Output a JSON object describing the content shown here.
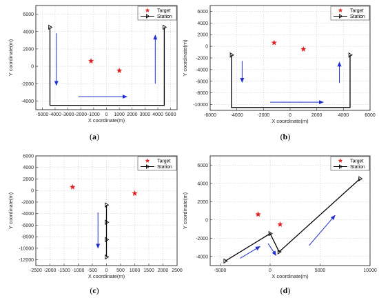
{
  "chart_data": [
    {
      "id": "a",
      "type": "line",
      "panel_label": "a",
      "xlabel": "X coordinate(m)",
      "ylabel": "Y coordinate(m)",
      "xlim": [
        -5500,
        5500
      ],
      "ylim": [
        -5000,
        7000
      ],
      "xticks": [
        -5000,
        -4000,
        -3000,
        -2000,
        -1000,
        0,
        1000,
        2000,
        3000,
        4000,
        5000
      ],
      "yticks": [
        -4000,
        -2000,
        0,
        2000,
        4000,
        6000
      ],
      "grid": true,
      "legend": {
        "position": "top-right",
        "entries": [
          "Target",
          "Station"
        ]
      },
      "targets": [
        [
          -1200,
          600
        ],
        [
          1000,
          -500
        ]
      ],
      "station_path": [
        [
          -4400,
          4500
        ],
        [
          -4400,
          -4500
        ],
        [
          4500,
          -4500
        ],
        [
          4500,
          4500
        ]
      ],
      "station_markers": [
        [
          -4400,
          4500
        ],
        [
          4500,
          4500
        ]
      ],
      "arrows": [
        [
          [
            -3900,
            3800
          ],
          [
            -3900,
            -2200
          ]
        ],
        [
          [
            -2200,
            -3500
          ],
          [
            1600,
            -3500
          ]
        ],
        [
          [
            3800,
            -2000
          ],
          [
            3800,
            3600
          ]
        ]
      ]
    },
    {
      "id": "b",
      "type": "line",
      "panel_label": "b",
      "xlabel": "X coordinate(m)",
      "ylabel": "Y coordinate(m)",
      "xlim": [
        -6000,
        6000
      ],
      "ylim": [
        -11000,
        7000
      ],
      "xticks": [
        -6000,
        -4000,
        -2000,
        0,
        2000,
        4000,
        6000
      ],
      "yticks": [
        -10000,
        -8000,
        -6000,
        -4000,
        -2000,
        0,
        2000,
        4000,
        6000
      ],
      "grid": true,
      "legend": {
        "position": "top-right",
        "entries": [
          "Target",
          "Station"
        ]
      },
      "targets": [
        [
          -1200,
          600
        ],
        [
          1000,
          -500
        ]
      ],
      "station_path": [
        [
          -4400,
          -1500
        ],
        [
          -4400,
          -10500
        ],
        [
          4500,
          -10500
        ],
        [
          4500,
          -1500
        ]
      ],
      "station_markers": [
        [
          -4400,
          -1500
        ],
        [
          4500,
          -1500
        ]
      ],
      "arrows": [
        [
          [
            -3600,
            -2500
          ],
          [
            -3600,
            -6200
          ]
        ],
        [
          [
            -1500,
            -9600
          ],
          [
            2500,
            -9600
          ]
        ],
        [
          [
            3700,
            -6300
          ],
          [
            3700,
            -2700
          ]
        ]
      ]
    },
    {
      "id": "c",
      "type": "line",
      "panel_label": "c",
      "xlabel": "X coordinate(m)",
      "ylabel": "Y coordinate(m)",
      "xlim": [
        -2500,
        2500
      ],
      "ylim": [
        -13000,
        6000
      ],
      "xticks": [
        -2500,
        -2000,
        -1500,
        -1000,
        -500,
        0,
        500,
        1000,
        1500,
        2000,
        2500
      ],
      "yticks": [
        -12000,
        -10000,
        -8000,
        -6000,
        -4000,
        -2000,
        0,
        2000,
        4000,
        6000
      ],
      "grid": true,
      "legend": {
        "position": "top-right",
        "entries": [
          "Target",
          "Station"
        ]
      },
      "targets": [
        [
          -1200,
          600
        ],
        [
          1000,
          -500
        ]
      ],
      "station_path": [
        [
          0,
          -2500
        ],
        [
          0,
          -11500
        ]
      ],
      "station_markers": [
        [
          0,
          -2500
        ],
        [
          0,
          -5500
        ],
        [
          0,
          -8500
        ],
        [
          0,
          -11500
        ]
      ],
      "arrows": [
        [
          [
            -300,
            -3800
          ],
          [
            -300,
            -10000
          ]
        ]
      ]
    },
    {
      "id": "d",
      "type": "line",
      "panel_label": "d",
      "xlabel": "X coordinate(m)",
      "ylabel": "Y coordinate(m)",
      "xlim": [
        -6000,
        10000
      ],
      "ylim": [
        -5000,
        7000
      ],
      "xticks": [
        -5000,
        0,
        5000,
        10000
      ],
      "yticks": [
        -4000,
        -2000,
        0,
        2000,
        4000,
        6000
      ],
      "grid": true,
      "legend": {
        "position": "top-right",
        "entries": [
          "Target",
          "Station"
        ]
      },
      "targets": [
        [
          -1200,
          600
        ],
        [
          1000,
          -500
        ]
      ],
      "station_path": [
        [
          -4500,
          -4500
        ],
        [
          0,
          -1500
        ],
        [
          900,
          -3500
        ],
        [
          9000,
          4500
        ]
      ],
      "station_markers": [
        [
          -4500,
          -4500
        ],
        [
          0,
          -1500
        ],
        [
          900,
          -3500
        ],
        [
          9000,
          4500
        ]
      ],
      "arrows": [
        [
          [
            -3000,
            -4200
          ],
          [
            -1000,
            -2900
          ]
        ],
        [
          [
            -200,
            -2600
          ],
          [
            600,
            -3900
          ]
        ],
        [
          [
            3900,
            -2800
          ],
          [
            6500,
            500
          ]
        ]
      ]
    }
  ],
  "colors": {
    "target": "#e02020",
    "station": "#000000",
    "arrow": "#1f2fd0",
    "grid": "#b8b8b8"
  }
}
